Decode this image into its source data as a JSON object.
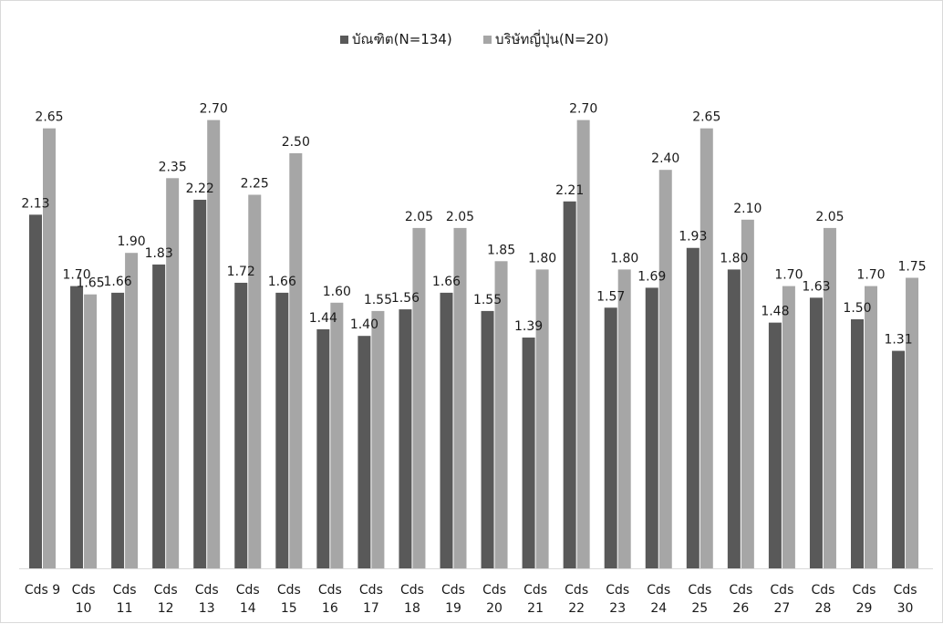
{
  "chart_data": {
    "type": "bar",
    "title": "",
    "xlabel": "",
    "ylabel": "",
    "ylim": [
      0,
      2.7
    ],
    "grid": false,
    "legend_position": "top-center",
    "categories": [
      "Cds 9",
      "Cds 10",
      "Cds 11",
      "Cds 12",
      "Cds 13",
      "Cds 14",
      "Cds 15",
      "Cds 16",
      "Cds 17",
      "Cds 18",
      "Cds 19",
      "Cds 20",
      "Cds 21",
      "Cds 22",
      "Cds 23",
      "Cds 24",
      "Cds 25",
      "Cds 26",
      "Cds 27",
      "Cds 28",
      "Cds 29",
      "Cds 30"
    ],
    "series": [
      {
        "name": "บัณฑิต(N=134)",
        "color": "#595959",
        "values": [
          2.13,
          1.7,
          1.66,
          1.83,
          2.22,
          1.72,
          1.66,
          1.44,
          1.4,
          1.56,
          1.66,
          1.55,
          1.39,
          2.21,
          1.57,
          1.69,
          1.93,
          1.8,
          1.48,
          1.63,
          1.5,
          1.31
        ],
        "labels": [
          "2.13",
          "1.70",
          "1.66",
          "1.83",
          "2.22",
          "1.72",
          "1.66",
          "1.44",
          "1.40",
          "1.56",
          "1.66",
          "1.55",
          "1.39",
          "2.21",
          "1.57",
          "1.69",
          "1.93",
          "1.80",
          "1.48",
          "1.63",
          "1.50",
          "1.31"
        ]
      },
      {
        "name": "บริษัทญี่ปุ่น(N=20)",
        "color": "#a6a6a6",
        "values": [
          2.65,
          1.65,
          1.9,
          2.35,
          2.7,
          2.25,
          2.5,
          1.6,
          1.55,
          2.05,
          2.05,
          1.85,
          1.8,
          2.7,
          1.8,
          2.4,
          2.65,
          2.1,
          1.7,
          2.05,
          1.7,
          1.75
        ],
        "labels": [
          "2.65",
          "1.65",
          "1.90",
          "2.35",
          "2.70",
          "2.25",
          "2.50",
          "1.60",
          "1.55",
          "2.05",
          "2.05",
          "1.85",
          "1.80",
          "2.70",
          "1.80",
          "2.40",
          "2.65",
          "2.10",
          "1.70",
          "2.05",
          "1.70",
          "1.75"
        ]
      }
    ]
  }
}
